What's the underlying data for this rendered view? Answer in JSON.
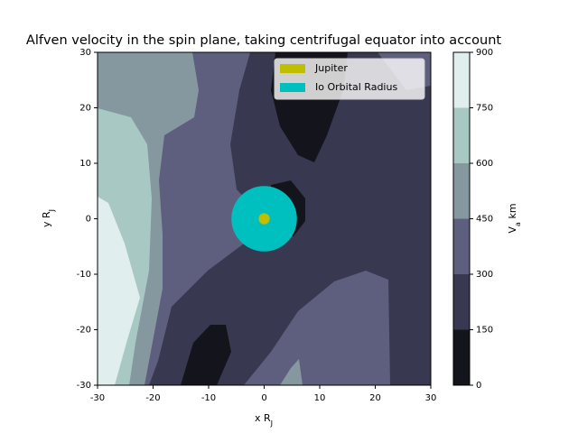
{
  "chart_data": {
    "type": "contour",
    "title": "Alfven velocity in the spin plane, taking centrifugal equator into account",
    "xlabel": "x R_J",
    "ylabel": "y R_J",
    "colorbar_label": "V_a km",
    "xlim": [
      -30,
      30
    ],
    "ylim": [
      -30,
      30
    ],
    "xticks": [
      -30,
      -20,
      -10,
      0,
      10,
      20,
      30
    ],
    "yticks": [
      -30,
      -20,
      -10,
      0,
      10,
      20,
      30
    ],
    "levels": [
      0,
      150,
      300,
      450,
      600,
      750,
      900
    ],
    "level_colors": [
      "#14141c",
      "#383850",
      "#5e5f7e",
      "#8598a0",
      "#a8c8c4",
      "#e0eeee"
    ],
    "markers": [
      {
        "name": "Jupiter",
        "color": "#bfbf00",
        "x": 0,
        "y": 0,
        "radius": 1
      },
      {
        "name": "Io Orbital Radius",
        "color": "#00bfbf",
        "x": 0,
        "y": 0,
        "radius": 5.9
      }
    ],
    "legend": "upper right"
  }
}
